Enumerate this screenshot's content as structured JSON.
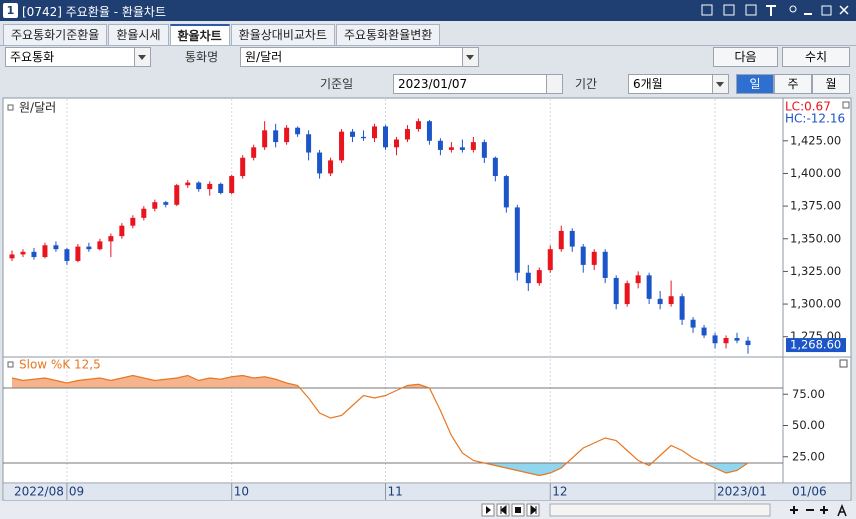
{
  "window": {
    "number": "1",
    "title": "[0742] 주요환율 - 환율차트"
  },
  "tabs": [
    "주요통화기준환율",
    "환율시세",
    "환율차트",
    "환율상대비교차트",
    "주요통화환율변환"
  ],
  "active_tab": 2,
  "controls": {
    "group": "주요통화",
    "currency_label": "통화명",
    "currency": "원/달러",
    "next": "다음",
    "values_btn": "수치",
    "date_label": "기준일",
    "date": "2023/01/07",
    "period_label": "기간",
    "period": "6개월",
    "units": [
      "일",
      "주",
      "월"
    ],
    "active_unit": 0
  },
  "chart_data": [
    {
      "type": "candlestick",
      "title": "원/달러",
      "annotations": [
        "LC:0.67",
        "HC:-12.16"
      ],
      "up_color": "#e8141e",
      "down_color": "#1c55c8",
      "ohlc": [
        [
          1335,
          1341,
          1333,
          1338
        ],
        [
          1338,
          1342,
          1336,
          1340
        ],
        [
          1340,
          1343,
          1334,
          1336
        ],
        [
          1336,
          1347,
          1335,
          1345
        ],
        [
          1345,
          1348,
          1340,
          1342
        ],
        [
          1342,
          1343,
          1330,
          1333
        ],
        [
          1333,
          1346,
          1332,
          1344
        ],
        [
          1344,
          1347,
          1340,
          1342
        ],
        [
          1342,
          1350,
          1341,
          1348
        ],
        [
          1348,
          1354,
          1336,
          1352
        ],
        [
          1352,
          1362,
          1350,
          1360
        ],
        [
          1360,
          1368,
          1358,
          1366
        ],
        [
          1366,
          1375,
          1364,
          1373
        ],
        [
          1373,
          1380,
          1371,
          1378
        ],
        [
          1378,
          1379,
          1374,
          1376
        ],
        [
          1376,
          1392,
          1375,
          1391
        ],
        [
          1391,
          1395,
          1389,
          1393
        ],
        [
          1393,
          1394,
          1386,
          1388
        ],
        [
          1388,
          1394,
          1383,
          1392
        ],
        [
          1392,
          1393,
          1384,
          1385
        ],
        [
          1385,
          1399,
          1384,
          1398
        ],
        [
          1398,
          1414,
          1396,
          1412
        ],
        [
          1412,
          1422,
          1410,
          1420
        ],
        [
          1420,
          1440,
          1418,
          1433
        ],
        [
          1433,
          1438,
          1420,
          1424
        ],
        [
          1424,
          1437,
          1422,
          1435
        ],
        [
          1435,
          1436,
          1428,
          1430
        ],
        [
          1430,
          1433,
          1410,
          1416
        ],
        [
          1416,
          1418,
          1396,
          1400
        ],
        [
          1400,
          1412,
          1398,
          1410
        ],
        [
          1410,
          1434,
          1408,
          1432
        ],
        [
          1432,
          1434,
          1424,
          1428
        ],
        [
          1428,
          1433,
          1425,
          1427
        ],
        [
          1427,
          1438,
          1424,
          1436
        ],
        [
          1436,
          1437,
          1418,
          1420
        ],
        [
          1420,
          1428,
          1414,
          1426
        ],
        [
          1426,
          1437,
          1424,
          1434
        ],
        [
          1434,
          1442,
          1432,
          1440
        ],
        [
          1440,
          1441,
          1422,
          1425
        ],
        [
          1425,
          1427,
          1414,
          1418
        ],
        [
          1418,
          1424,
          1416,
          1420
        ],
        [
          1420,
          1426,
          1416,
          1418
        ],
        [
          1418,
          1428,
          1416,
          1424
        ],
        [
          1424,
          1426,
          1408,
          1412
        ],
        [
          1412,
          1413,
          1394,
          1398
        ],
        [
          1398,
          1399,
          1370,
          1374
        ],
        [
          1374,
          1376,
          1318,
          1324
        ],
        [
          1324,
          1330,
          1310,
          1316
        ],
        [
          1316,
          1328,
          1314,
          1326
        ],
        [
          1326,
          1345,
          1324,
          1342
        ],
        [
          1342,
          1360,
          1340,
          1356
        ],
        [
          1356,
          1358,
          1340,
          1344
        ],
        [
          1344,
          1346,
          1324,
          1330
        ],
        [
          1330,
          1342,
          1326,
          1340
        ],
        [
          1340,
          1342,
          1316,
          1320
        ],
        [
          1320,
          1322,
          1296,
          1300
        ],
        [
          1300,
          1318,
          1298,
          1316
        ],
        [
          1316,
          1325,
          1312,
          1322
        ],
        [
          1322,
          1324,
          1300,
          1304
        ],
        [
          1304,
          1310,
          1296,
          1300
        ],
        [
          1300,
          1318,
          1298,
          1306
        ],
        [
          1306,
          1308,
          1284,
          1288
        ],
        [
          1288,
          1290,
          1278,
          1282
        ],
        [
          1282,
          1284,
          1274,
          1276
        ],
        [
          1276,
          1278,
          1266,
          1270
        ],
        [
          1270,
          1276,
          1266,
          1274
        ],
        [
          1274,
          1278,
          1270,
          1272
        ],
        [
          1272,
          1275,
          1262,
          1268.6
        ]
      ],
      "last_label": "1,268.60",
      "ylim": [
        1261,
        1457
      ],
      "yticks": [
        {
          "value": 1425,
          "label": "1,425.00"
        },
        {
          "value": 1400,
          "label": "1,400.00"
        },
        {
          "value": 1375,
          "label": "1,375.00"
        },
        {
          "value": 1350,
          "label": "1,350.00"
        },
        {
          "value": 1325,
          "label": "1,325.00"
        },
        {
          "value": 1300,
          "label": "1,300.00"
        },
        {
          "value": 1275,
          "label": "1,275.00"
        }
      ],
      "grid": true
    },
    {
      "type": "line",
      "title": "Slow %K 12,5",
      "color": "#e87722",
      "upper_fill": "#f6b48e",
      "lower_fill": "#8fd6ee",
      "values": [
        88,
        86,
        87,
        88,
        86,
        84,
        86,
        87,
        88,
        86,
        88,
        90,
        88,
        86,
        87,
        88,
        90,
        86,
        88,
        87,
        89,
        90,
        88,
        89,
        87,
        84,
        82,
        72,
        60,
        56,
        58,
        66,
        74,
        72,
        74,
        78,
        82,
        83,
        80,
        62,
        42,
        28,
        22,
        20,
        18,
        16,
        14,
        12,
        10,
        12,
        16,
        24,
        32,
        36,
        40,
        38,
        30,
        22,
        18,
        26,
        34,
        30,
        24,
        20,
        16,
        12,
        14,
        20
      ],
      "levels": [
        80,
        20
      ],
      "ylim": [
        4,
        104
      ],
      "yticks": [
        {
          "value": 75,
          "label": "75.00"
        },
        {
          "value": 50,
          "label": "50.00"
        },
        {
          "value": 25,
          "label": "25.00"
        }
      ],
      "x_labels": [
        {
          "index": 0,
          "label": "2022/08"
        },
        {
          "index": 5,
          "label": "09"
        },
        {
          "index": 20,
          "label": "10"
        },
        {
          "index": 34,
          "label": "11"
        },
        {
          "index": 49,
          "label": "12"
        },
        {
          "index": 64,
          "label": "2023/01"
        }
      ],
      "last_date": "01/06"
    }
  ]
}
